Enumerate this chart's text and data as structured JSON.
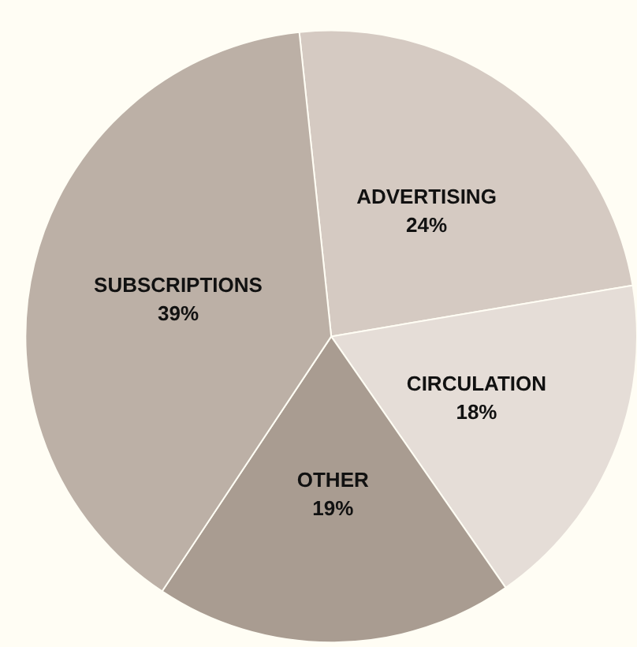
{
  "chart_data": {
    "type": "pie",
    "categories": [
      "ADVERTISING",
      "CIRCULATION",
      "OTHER",
      "SUBSCRIPTIONS"
    ],
    "values": [
      24,
      18,
      19,
      39
    ],
    "value_labels": [
      "24%",
      "18%",
      "19%",
      "39%"
    ],
    "colors": [
      "#d5cac2",
      "#e5ddd7",
      "#a99c91",
      "#bcb0a6"
    ],
    "legend": false
  }
}
